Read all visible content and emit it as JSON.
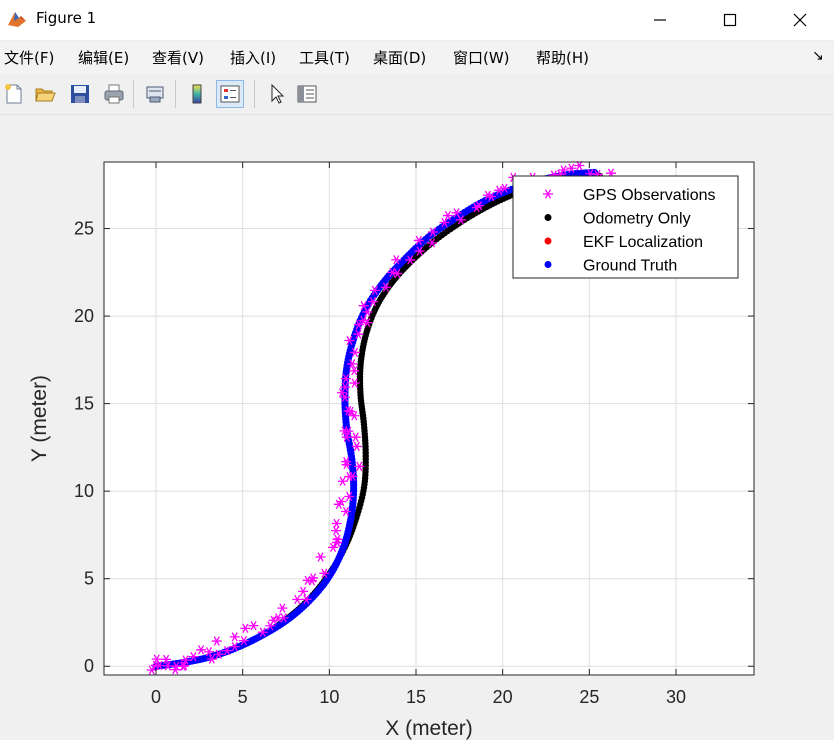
{
  "window": {
    "title": "Figure 1",
    "icon": "matlab-icon"
  },
  "window_controls": [
    "minimize-icon",
    "maximize-icon",
    "close-icon"
  ],
  "menu": [
    "文件(F)",
    "编辑(E)",
    "查看(V)",
    "插入(I)",
    "工具(T)",
    "桌面(D)",
    "窗口(W)",
    "帮助(H)"
  ],
  "menu_dock_icon": "dock-arrow-icon",
  "toolbar": [
    "new-figure-icon",
    "open-file-icon",
    "save-icon",
    "print-icon",
    "link-plot-icon",
    "colorbar-icon",
    "legend-icon",
    "pointer-icon",
    "property-editor-icon"
  ],
  "colors": {
    "gps": "#ff00ff",
    "odometry": "#000000",
    "ekf": "#ff0000",
    "truth": "#0000ff"
  },
  "chart_data": {
    "type": "scatter",
    "title": "",
    "xlabel": "X (meter)",
    "ylabel": "Y (meter)",
    "xlim": [
      -3,
      34.5
    ],
    "ylim": [
      -0.5,
      28.8
    ],
    "xticks": [
      0,
      5,
      10,
      15,
      20,
      25,
      30
    ],
    "yticks": [
      0,
      5,
      10,
      15,
      20,
      25
    ],
    "grid": true,
    "legend_position": "top-right",
    "series": [
      {
        "name": "GPS Observations",
        "marker": "*",
        "color": "#ff00ff",
        "x": [
          0,
          0.6,
          1.4,
          2.5,
          3.8,
          5.2,
          6.5,
          7.7,
          8.8,
          9.7,
          10.4,
          10.9,
          11.2,
          11.4,
          11.3,
          11.1,
          11.2,
          11.5,
          12.0,
          12.8,
          13.9,
          15.2,
          16.8,
          18.5,
          20.2,
          22.0,
          23.8,
          25.3,
          26.3
        ],
        "y": [
          0,
          0.1,
          0.3,
          0.6,
          1.0,
          1.6,
          2.4,
          3.4,
          4.6,
          6.0,
          7.5,
          9.0,
          10.5,
          12.0,
          13.5,
          15.0,
          16.5,
          18.0,
          19.5,
          21.0,
          22.5,
          23.9,
          25.3,
          26.4,
          27.3,
          27.9,
          28.2,
          28.2,
          28.0
        ]
      },
      {
        "name": "Odometry Only",
        "marker": ".",
        "color": "#000000",
        "x": [
          0,
          1.5,
          3.0,
          4.5,
          6.0,
          7.4,
          8.7,
          9.8,
          10.8,
          11.5,
          12.0,
          12.1,
          12.0,
          11.8,
          11.8,
          12.1,
          12.7,
          13.6,
          14.8,
          16.2,
          17.8,
          19.4,
          21.0,
          22.6,
          24.2,
          25.6
        ],
        "y": [
          0,
          0.2,
          0.5,
          1.0,
          1.7,
          2.6,
          3.7,
          5.0,
          6.6,
          8.3,
          10.2,
          12.0,
          13.8,
          15.5,
          17.2,
          18.9,
          20.5,
          21.9,
          23.2,
          24.4,
          25.5,
          26.4,
          27.1,
          27.6,
          27.9,
          28.0
        ]
      },
      {
        "name": "EKF Localization",
        "marker": ".",
        "color": "#ff0000",
        "x": [
          0,
          1.5,
          3.0,
          4.5,
          6.0,
          7.5,
          8.8,
          9.9,
          10.7,
          11.2,
          11.4,
          11.3,
          11.0,
          10.9,
          11.0,
          11.4,
          12.1,
          13.1,
          14.3,
          15.7,
          17.3,
          19.0,
          20.7,
          22.3,
          23.9,
          25.3
        ],
        "y": [
          0,
          0.2,
          0.5,
          1.0,
          1.7,
          2.6,
          3.7,
          5.0,
          6.5,
          8.2,
          10.0,
          11.8,
          13.6,
          15.3,
          17.0,
          18.7,
          20.4,
          21.9,
          23.2,
          24.5,
          25.6,
          26.6,
          27.3,
          27.8,
          28.1,
          28.2
        ]
      },
      {
        "name": "Ground Truth",
        "marker": ".",
        "color": "#0000ff",
        "x": [
          0,
          1.5,
          3.0,
          4.5,
          6.0,
          7.5,
          8.8,
          9.9,
          10.7,
          11.2,
          11.4,
          11.3,
          11.0,
          10.9,
          11.0,
          11.4,
          12.1,
          13.1,
          14.3,
          15.7,
          17.3,
          19.0,
          20.7,
          22.3,
          23.9,
          25.3
        ],
        "y": [
          0,
          0.2,
          0.5,
          1.0,
          1.7,
          2.6,
          3.7,
          5.0,
          6.5,
          8.2,
          10.0,
          11.8,
          13.6,
          15.3,
          17.0,
          18.7,
          20.4,
          21.9,
          23.2,
          24.5,
          25.6,
          26.6,
          27.3,
          27.8,
          28.1,
          28.2
        ]
      }
    ]
  }
}
